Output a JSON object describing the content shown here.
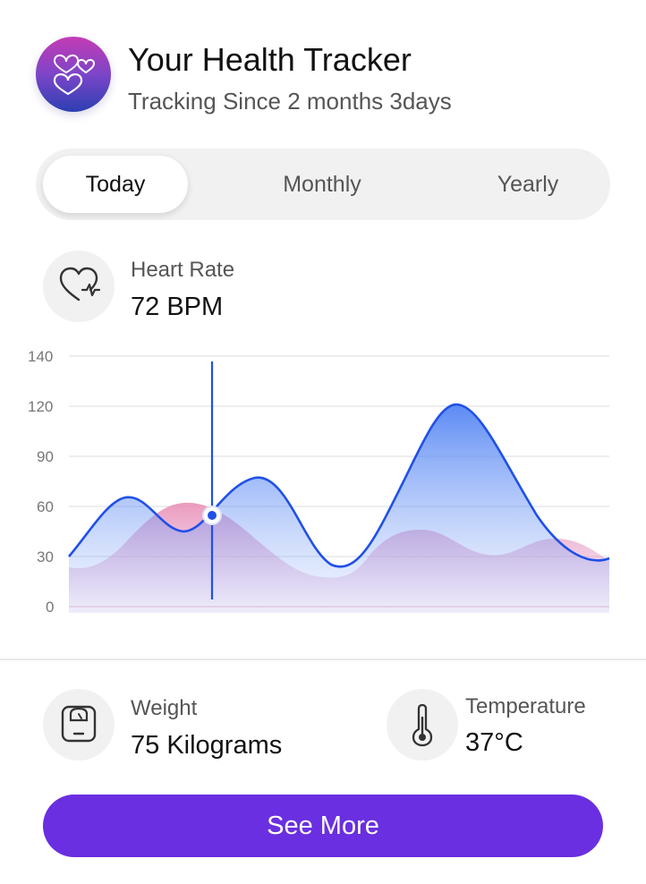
{
  "header": {
    "title": "Your Health Tracker",
    "subtitle": "Tracking Since 2 months 3days",
    "logo_icon": "hearts-icon"
  },
  "tabs": [
    {
      "label": "Today",
      "active": true
    },
    {
      "label": "Monthly",
      "active": false
    },
    {
      "label": "Yearly",
      "active": false
    }
  ],
  "heart_rate": {
    "label": "Heart Rate",
    "value": "72 BPM",
    "icon": "heart-pulse-icon"
  },
  "chart_data": {
    "type": "area",
    "y_ticks": [
      "140",
      "120",
      "90",
      "60",
      "30",
      "0"
    ],
    "series": [
      {
        "color": "#1f50e8",
        "fill": "blue-gradient",
        "shape": "peaks near 65, 77 and 122"
      },
      {
        "color": "#e7a1bf",
        "fill": "pink-gradient",
        "shape": "peaks near 62, 46 and 40"
      }
    ],
    "marker": {
      "value": 55,
      "line_color": "#1f50e8"
    },
    "grid": true
  },
  "weight": {
    "label": "Weight",
    "value": "75 Kilograms",
    "icon": "scale-icon"
  },
  "temperature": {
    "label": "Temperature",
    "value": "37°C",
    "icon": "thermometer-icon"
  },
  "cta": {
    "label": "See More",
    "color": "#6a2fe0"
  }
}
